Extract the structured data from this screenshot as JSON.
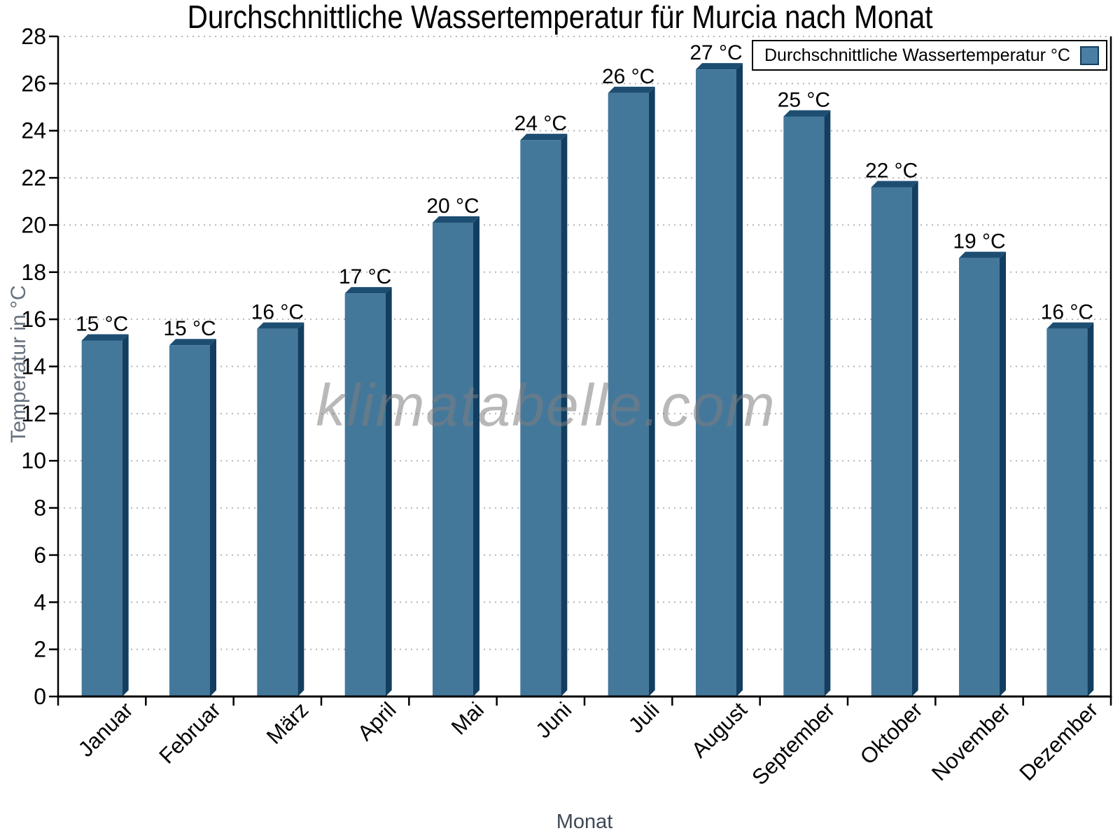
{
  "header": {
    "title": "Durchschnittliche Wassertemperatur für Murcia nach Monat"
  },
  "legend": {
    "label": "Durchschnittliche Wassertemperatur °C",
    "swatch_color": "#4a7ea3"
  },
  "watermark": {
    "text": "klimatabelle.com"
  },
  "axes": {
    "y_title": "Temperatur in °C",
    "x_title": "Monat"
  },
  "colors": {
    "bar_front": "#44789B",
    "bar_top": "#1D4E72",
    "bar_side": "#123E60",
    "grid": "#b5b5b5",
    "axis": "#000000",
    "tick_label": "#000000",
    "value_label": "#000000",
    "y_title": "#68727e",
    "x_title": "#3e4956",
    "watermark": "#7f7f7f"
  },
  "chart_data": {
    "type": "bar",
    "title": "Durchschnittliche Wassertemperatur für Murcia nach Monat",
    "xlabel": "Monat",
    "ylabel": "Temperatur in °C",
    "categories": [
      "Januar",
      "Februar",
      "März",
      "April",
      "Mai",
      "Juni",
      "Juli",
      "August",
      "September",
      "Oktober",
      "November",
      "Dezember"
    ],
    "values": [
      15.1,
      14.9,
      15.6,
      17.1,
      20.1,
      23.6,
      25.6,
      26.6,
      24.6,
      21.6,
      18.6,
      15.6
    ],
    "bar_labels": [
      "15 °C",
      "15 °C",
      "16 °C",
      "17 °C",
      "20 °C",
      "24 °C",
      "26 °C",
      "27 °C",
      "25 °C",
      "22 °C",
      "19 °C",
      "16 °C"
    ],
    "series": [
      {
        "name": "Durchschnittliche Wassertemperatur °C",
        "values": [
          15.1,
          14.9,
          15.6,
          17.1,
          20.1,
          23.6,
          25.6,
          26.6,
          24.6,
          21.6,
          18.6,
          15.6
        ]
      }
    ],
    "ylim": [
      0,
      28
    ],
    "ytick_step": 2,
    "yticks": [
      0,
      2,
      4,
      6,
      8,
      10,
      12,
      14,
      16,
      18,
      20,
      22,
      24,
      26,
      28
    ],
    "grid": "horizontal-dotted",
    "legend_entries": [
      "Durchschnittliche Wassertemperatur °C"
    ],
    "legend_position": "top-right",
    "bar_style": "3d-extruded"
  }
}
